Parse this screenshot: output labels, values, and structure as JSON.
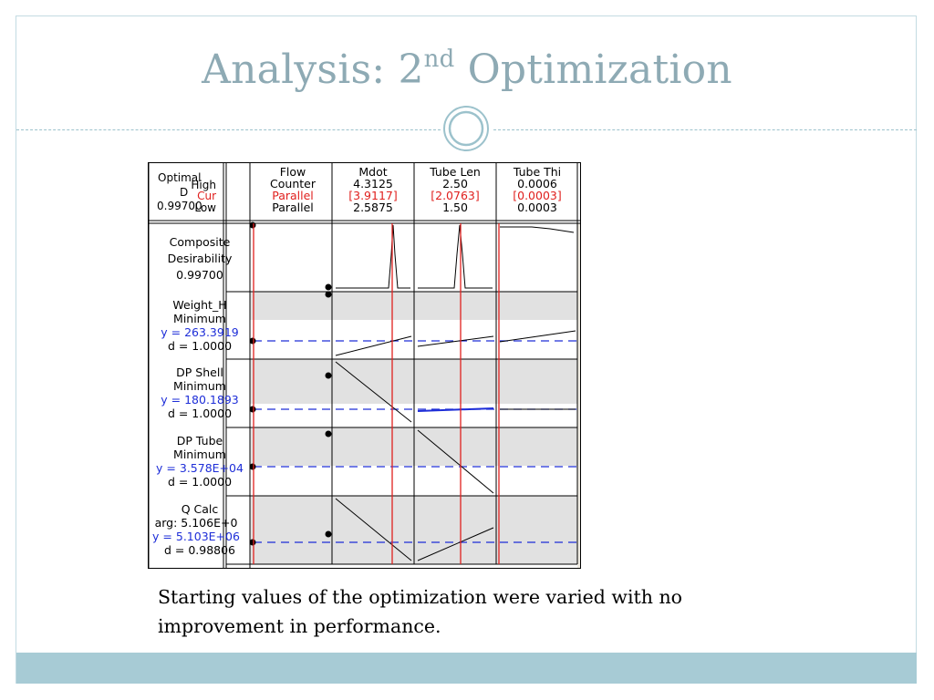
{
  "slide": {
    "title_main": "Analysis: 2",
    "title_sup": "nd",
    "title_rest": " Optimization",
    "caption": "Starting values of the optimization were varied with no improvement in performance."
  },
  "optimizer": {
    "optimal_label": "Optimal",
    "d_label": "D",
    "d_value": "0.99700",
    "row_labels": {
      "high": "High",
      "cur": "Cur",
      "low": "Low"
    },
    "factors": [
      {
        "name": "Flow",
        "high": "Counter",
        "cur": "Parallel",
        "low": "Parallel"
      },
      {
        "name": "Mdot",
        "high": "4.3125",
        "cur": "[3.9117]",
        "low": "2.5875"
      },
      {
        "name": "Tube Len",
        "high": "2.50",
        "cur": "[2.0763]",
        "low": "1.50"
      },
      {
        "name": "Tube Thi",
        "high": "0.0006",
        "cur": "[0.0003]",
        "low": "0.0003"
      }
    ],
    "responses": [
      {
        "name": "Composite",
        "line2": "Desirability",
        "line3": "0.99700",
        "line4": ""
      },
      {
        "name": "Weight_H",
        "line2": "Minimum",
        "line3": "y = 263.3919",
        "line4": "d = 1.0000"
      },
      {
        "name": "DP Shell",
        "line2": "Minimum",
        "line3": "y = 180.1893",
        "line4": "d = 1.0000"
      },
      {
        "name": "DP Tube",
        "line2": "Minimum",
        "line3": "y = 3.578E+04",
        "line4": "d = 1.0000"
      },
      {
        "name": "Q Calc",
        "line2": "arg: 5.106E+0",
        "line3": "y = 5.103E+06",
        "line4": "d = 0.98806"
      }
    ],
    "colors": {
      "current": "#e0201e",
      "reference": "#1e2ed8",
      "shade": "#e1e1e1",
      "panel_bg": "#efebe2"
    }
  }
}
